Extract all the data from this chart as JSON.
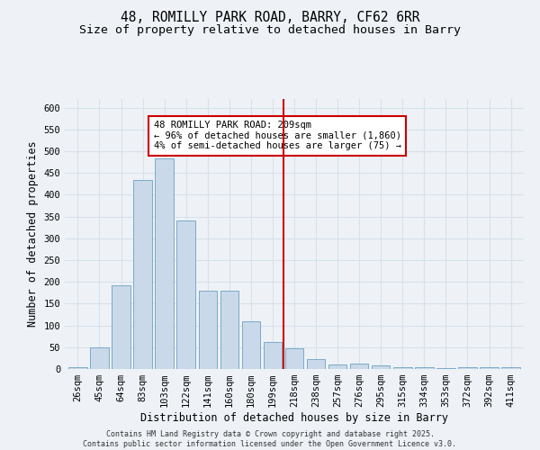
{
  "title_line1": "48, ROMILLY PARK ROAD, BARRY, CF62 6RR",
  "title_line2": "Size of property relative to detached houses in Barry",
  "xlabel": "Distribution of detached houses by size in Barry",
  "ylabel": "Number of detached properties",
  "categories": [
    "26sqm",
    "45sqm",
    "64sqm",
    "83sqm",
    "103sqm",
    "122sqm",
    "141sqm",
    "160sqm",
    "180sqm",
    "199sqm",
    "218sqm",
    "238sqm",
    "257sqm",
    "276sqm",
    "295sqm",
    "315sqm",
    "334sqm",
    "353sqm",
    "372sqm",
    "392sqm",
    "411sqm"
  ],
  "values": [
    5,
    50,
    193,
    433,
    483,
    340,
    180,
    180,
    110,
    62,
    47,
    23,
    11,
    13,
    8,
    5,
    5,
    3,
    5,
    4,
    4
  ],
  "bar_color": "#c9d9ea",
  "bar_edge_color": "#7aaac8",
  "grid_color": "#d8e0ea",
  "bg_color": "#eef2f7",
  "vline_color": "#cc0000",
  "annotation_text": "48 ROMILLY PARK ROAD: 209sqm\n← 96% of detached houses are smaller (1,860)\n4% of semi-detached houses are larger (75) →",
  "annotation_box_color": "#ffffff",
  "annotation_box_edge": "#cc0000",
  "ylim": [
    0,
    620
  ],
  "yticks": [
    0,
    50,
    100,
    150,
    200,
    250,
    300,
    350,
    400,
    450,
    500,
    550,
    600
  ],
  "footnote": "Contains HM Land Registry data © Crown copyright and database right 2025.\nContains public sector information licensed under the Open Government Licence v3.0.",
  "title_fontsize": 10.5,
  "subtitle_fontsize": 9.5,
  "xlabel_fontsize": 8.5,
  "ylabel_fontsize": 8.5,
  "tick_fontsize": 7.5,
  "annotation_fontsize": 7.5,
  "footnote_fontsize": 6.0
}
